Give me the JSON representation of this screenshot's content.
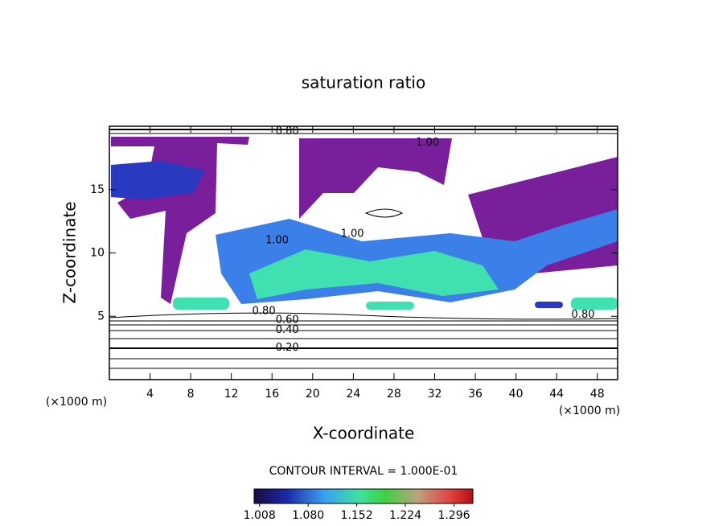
{
  "chart_data": {
    "type": "contour",
    "title": "saturation ratio",
    "xlabel": "X-coordinate",
    "ylabel": "Z-coordinate",
    "x_unit": "(×1000 m)",
    "y_unit": "(×1000 m)",
    "xlim": [
      0,
      50
    ],
    "xticks": [
      4,
      8,
      12,
      16,
      20,
      24,
      28,
      32,
      36,
      40,
      44,
      48
    ],
    "ylim": [
      0,
      20
    ],
    "yticks": [
      5,
      10,
      15
    ],
    "contour_interval": "CONTOUR INTERVAL = 1.000E-01",
    "contour_labels": [
      {
        "value": 0.2,
        "label": "0.20",
        "x": 17.5,
        "y": 2.5
      },
      {
        "value": 0.4,
        "label": "0.40",
        "x": 17.5,
        "y": 3.9
      },
      {
        "value": 0.6,
        "label": "0.60",
        "x": 17.5,
        "y": 4.7
      },
      {
        "value": 0.8,
        "label": "0.80",
        "x": 15.2,
        "y": 5.4
      },
      {
        "value": 0.8,
        "label": "0.80",
        "x": 46.6,
        "y": 5.1
      },
      {
        "value": 1.0,
        "label": "1.00",
        "x": 23.9,
        "y": 11.5
      },
      {
        "value": 1.0,
        "label": "1.00",
        "x": 16.5,
        "y": 11.0
      },
      {
        "value": 1.0,
        "label": "1.00",
        "x": 31.3,
        "y": 18.7
      },
      {
        "value": 0.8,
        "label": "0.80",
        "x": 17.5,
        "y": 19.6
      }
    ],
    "colorbar": {
      "lim": [
        1.0,
        1.324
      ],
      "ticks": [
        1.008,
        {
          "value": 1.08,
          "label": "1.080"
        },
        1.152,
        1.224,
        1.296
      ]
    }
  }
}
